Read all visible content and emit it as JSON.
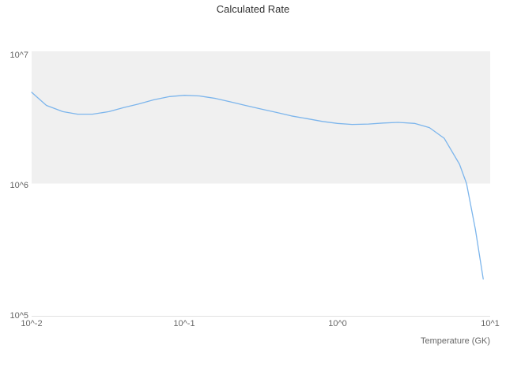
{
  "chart": {
    "title": "Calculated Rate",
    "x_axis_title": "Temperature (GK)",
    "y_tick_labels": [
      "10^7",
      "10^6",
      "10^5"
    ],
    "x_tick_labels": [
      "10^-2",
      "10^-1",
      "10^0",
      "10^1"
    ]
  },
  "chart_data": {
    "type": "line",
    "title": "Calculated Rate",
    "xlabel": "Temperature (GK)",
    "ylabel": "",
    "x_scale": "log",
    "y_scale": "log",
    "xlim": [
      0.01,
      10
    ],
    "ylim": [
      100000,
      10000000
    ],
    "x_ticks": [
      0.01,
      0.1,
      1,
      10
    ],
    "y_ticks": [
      100000,
      1000000,
      10000000
    ],
    "grid": false,
    "legend": "none",
    "line_color": "#7cb5ec",
    "band": {
      "from": 1000000,
      "to": 10000000,
      "color": "#f0f0f0"
    },
    "axis_line_color": "#e0e0e0",
    "series": [
      {
        "name": "Calculated Rate",
        "x": [
          0.01,
          0.0125,
          0.016,
          0.02,
          0.025,
          0.032,
          0.04,
          0.05,
          0.063,
          0.08,
          0.1,
          0.125,
          0.16,
          0.2,
          0.25,
          0.32,
          0.4,
          0.5,
          0.63,
          0.8,
          1.0,
          1.25,
          1.6,
          2.0,
          2.5,
          3.2,
          4.0,
          5.0,
          6.3,
          7.0,
          8.0,
          9.0
        ],
        "y": [
          4900000,
          3900000,
          3500000,
          3350000,
          3350000,
          3500000,
          3750000,
          4000000,
          4300000,
          4550000,
          4650000,
          4600000,
          4400000,
          4150000,
          3900000,
          3650000,
          3450000,
          3250000,
          3100000,
          2950000,
          2850000,
          2800000,
          2820000,
          2870000,
          2900000,
          2850000,
          2650000,
          2200000,
          1400000,
          1000000,
          450000,
          190000
        ]
      }
    ]
  }
}
